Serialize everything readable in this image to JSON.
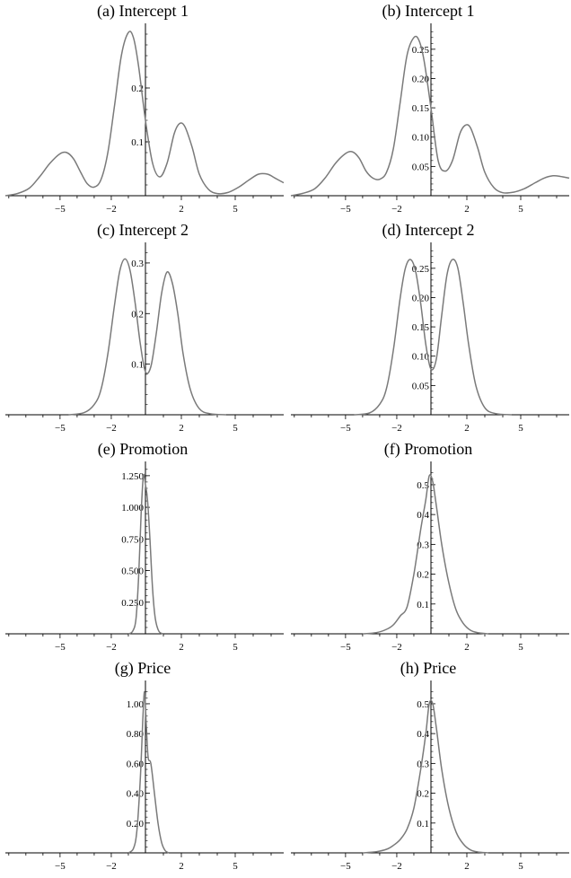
{
  "chart_data": [
    {
      "type": "line",
      "title": "(a) Intercept 1",
      "xticks": [
        -5,
        -2,
        2,
        5
      ],
      "yticks": [
        "0.1",
        "0.2"
      ],
      "ytick_values": [
        0.1,
        0.2
      ],
      "xlim": [
        -8.2,
        7.7
      ],
      "ylim": [
        0,
        0.31
      ],
      "series": [
        {
          "x": [
            -8.2,
            -7.5,
            -6.8,
            -6.2,
            -5.6,
            -5.0,
            -4.6,
            -4.2,
            -3.8,
            -3.4,
            -3.0,
            -2.6,
            -2.2,
            -1.8,
            -1.4,
            -1.0,
            -0.7,
            -0.4,
            0.0,
            0.4,
            0.8,
            1.2,
            1.6,
            1.9,
            2.2,
            2.6,
            3.0,
            3.5,
            4.0,
            4.6,
            5.2,
            5.8,
            6.3,
            6.8,
            7.2,
            7.7
          ],
          "y": [
            0.0,
            0.004,
            0.014,
            0.035,
            0.06,
            0.078,
            0.08,
            0.068,
            0.044,
            0.022,
            0.016,
            0.03,
            0.08,
            0.17,
            0.262,
            0.303,
            0.293,
            0.24,
            0.14,
            0.06,
            0.035,
            0.06,
            0.115,
            0.134,
            0.128,
            0.09,
            0.04,
            0.012,
            0.004,
            0.006,
            0.016,
            0.03,
            0.04,
            0.04,
            0.033,
            0.024
          ]
        }
      ]
    },
    {
      "type": "line",
      "title": "(b) Intercept 1",
      "xticks": [
        -5,
        -2,
        2,
        5
      ],
      "yticks": [
        "0.05",
        "0.10",
        "0.15",
        "0.20",
        "0.25"
      ],
      "ytick_values": [
        0.05,
        0.1,
        0.15,
        0.2,
        0.25
      ],
      "xlim": [
        -8.2,
        7.7
      ],
      "ylim": [
        0,
        0.285
      ],
      "series": [
        {
          "x": [
            -8.2,
            -7.5,
            -6.8,
            -6.2,
            -5.6,
            -5.0,
            -4.6,
            -4.2,
            -3.8,
            -3.4,
            -3.0,
            -2.6,
            -2.2,
            -1.8,
            -1.4,
            -1.0,
            -0.7,
            -0.4,
            0.0,
            0.4,
            0.8,
            1.2,
            1.6,
            1.9,
            2.2,
            2.6,
            3.0,
            3.5,
            4.0,
            4.6,
            5.2,
            5.8,
            6.3,
            6.8,
            7.2,
            7.7
          ],
          "y": [
            0.0,
            0.004,
            0.012,
            0.03,
            0.055,
            0.072,
            0.075,
            0.064,
            0.042,
            0.03,
            0.028,
            0.04,
            0.08,
            0.16,
            0.24,
            0.27,
            0.265,
            0.23,
            0.15,
            0.06,
            0.042,
            0.06,
            0.105,
            0.12,
            0.116,
            0.082,
            0.04,
            0.014,
            0.005,
            0.006,
            0.012,
            0.022,
            0.03,
            0.034,
            0.033,
            0.03
          ]
        }
      ]
    },
    {
      "type": "line",
      "title": "(c) Intercept 2",
      "xticks": [
        -5,
        -2,
        2,
        5
      ],
      "yticks": [
        "0.1",
        "0.2",
        "0.3"
      ],
      "ytick_values": [
        0.1,
        0.2,
        0.3
      ],
      "xlim": [
        -8.2,
        7.7
      ],
      "ylim": [
        0,
        0.33
      ],
      "series": [
        {
          "x": [
            -4.5,
            -3.6,
            -3.0,
            -2.6,
            -2.2,
            -1.8,
            -1.5,
            -1.2,
            -0.9,
            -0.6,
            -0.3,
            0.0,
            0.3,
            0.6,
            0.9,
            1.2,
            1.5,
            1.8,
            2.1,
            2.5,
            3.0,
            3.6,
            4.5
          ],
          "y": [
            0.0,
            0.004,
            0.02,
            0.05,
            0.12,
            0.22,
            0.285,
            0.308,
            0.285,
            0.22,
            0.14,
            0.085,
            0.095,
            0.16,
            0.24,
            0.282,
            0.26,
            0.2,
            0.12,
            0.05,
            0.012,
            0.002,
            0.0
          ]
        }
      ]
    },
    {
      "type": "line",
      "title": "(d) Intercept 2",
      "xticks": [
        -5,
        -2,
        2,
        5
      ],
      "yticks": [
        "0.05",
        "0.10",
        "0.15",
        "0.20",
        "0.25"
      ],
      "ytick_values": [
        0.05,
        0.1,
        0.15,
        0.2,
        0.25
      ],
      "xlim": [
        -8.2,
        7.7
      ],
      "ylim": [
        0,
        0.285
      ],
      "series": [
        {
          "x": [
            -4.5,
            -3.6,
            -3.0,
            -2.6,
            -2.2,
            -1.8,
            -1.5,
            -1.2,
            -0.9,
            -0.6,
            -0.3,
            0.0,
            0.3,
            0.6,
            0.9,
            1.2,
            1.5,
            1.8,
            2.1,
            2.5,
            3.0,
            3.6,
            4.5
          ],
          "y": [
            0.0,
            0.003,
            0.018,
            0.045,
            0.11,
            0.2,
            0.25,
            0.265,
            0.245,
            0.19,
            0.12,
            0.078,
            0.095,
            0.17,
            0.24,
            0.265,
            0.25,
            0.19,
            0.12,
            0.05,
            0.012,
            0.002,
            0.0
          ]
        }
      ]
    },
    {
      "type": "line",
      "title": "(e) Promotion",
      "xticks": [
        -5,
        -2,
        2,
        5
      ],
      "yticks": [
        "0.250",
        "0.500",
        "0.750",
        "1.000",
        "1.250"
      ],
      "ytick_values": [
        0.25,
        0.5,
        0.75,
        1.0,
        1.25
      ],
      "xlim": [
        -8.2,
        7.7
      ],
      "ylim": [
        0,
        1.32
      ],
      "series": [
        {
          "x": [
            -1.0,
            -0.75,
            -0.55,
            -0.4,
            -0.25,
            -0.12,
            0.0,
            0.12,
            0.25,
            0.4,
            0.55,
            0.75,
            1.0
          ],
          "y": [
            0.0,
            0.02,
            0.12,
            0.45,
            0.95,
            1.25,
            1.18,
            1.05,
            0.75,
            0.35,
            0.12,
            0.02,
            0.0
          ]
        }
      ]
    },
    {
      "type": "line",
      "title": "(f) Promotion",
      "xticks": [
        -5,
        -2,
        2,
        5
      ],
      "yticks": [
        "0.1",
        "0.2",
        "0.3",
        "0.4",
        "0.5"
      ],
      "ytick_values": [
        0.1,
        0.2,
        0.3,
        0.4,
        0.5
      ],
      "xlim": [
        -8.2,
        7.7
      ],
      "ylim": [
        0,
        0.56
      ],
      "series": [
        {
          "x": [
            -4.0,
            -3.2,
            -2.6,
            -2.2,
            -1.8,
            -1.4,
            -1.0,
            -0.6,
            -0.3,
            -0.1,
            0.1,
            0.3,
            0.6,
            1.0,
            1.4,
            1.8,
            2.2,
            2.6,
            3.2
          ],
          "y": [
            0.0,
            0.004,
            0.015,
            0.03,
            0.06,
            0.09,
            0.2,
            0.35,
            0.45,
            0.53,
            0.51,
            0.43,
            0.3,
            0.17,
            0.08,
            0.035,
            0.012,
            0.004,
            0.0
          ]
        }
      ]
    },
    {
      "type": "line",
      "title": "(g) Price",
      "xticks": [
        -5,
        -2,
        2,
        5
      ],
      "yticks": [
        "0.20",
        "0.40",
        "0.60",
        "0.80",
        "1.00"
      ],
      "ytick_values": [
        0.2,
        0.4,
        0.6,
        0.8,
        1.0
      ],
      "xlim": [
        -8.2,
        7.7
      ],
      "ylim": [
        0,
        1.12
      ],
      "series": [
        {
          "x": [
            -1.0,
            -0.7,
            -0.5,
            -0.3,
            -0.15,
            -0.05,
            0.05,
            0.15,
            0.3,
            0.5,
            0.7,
            0.9,
            1.1,
            1.3
          ],
          "y": [
            0.0,
            0.03,
            0.15,
            0.5,
            0.9,
            1.08,
            0.85,
            0.64,
            0.6,
            0.4,
            0.2,
            0.07,
            0.015,
            0.0
          ]
        }
      ]
    },
    {
      "type": "line",
      "title": "(h) Price",
      "xticks": [
        -5,
        -2,
        2,
        5
      ],
      "yticks": [
        "0.1",
        "0.2",
        "0.3",
        "0.4",
        "0.5"
      ],
      "ytick_values": [
        0.1,
        0.2,
        0.3,
        0.4,
        0.5
      ],
      "xlim": [
        -8.2,
        7.7
      ],
      "ylim": [
        0,
        0.56
      ],
      "series": [
        {
          "x": [
            -4.0,
            -3.2,
            -2.6,
            -2.2,
            -1.8,
            -1.4,
            -1.0,
            -0.6,
            -0.3,
            -0.1,
            0.1,
            0.3,
            0.6,
            1.0,
            1.4,
            1.8,
            2.2,
            2.6,
            3.2
          ],
          "y": [
            0.0,
            0.004,
            0.012,
            0.025,
            0.045,
            0.08,
            0.15,
            0.28,
            0.4,
            0.5,
            0.5,
            0.42,
            0.28,
            0.15,
            0.07,
            0.03,
            0.01,
            0.003,
            0.0
          ]
        }
      ]
    }
  ]
}
